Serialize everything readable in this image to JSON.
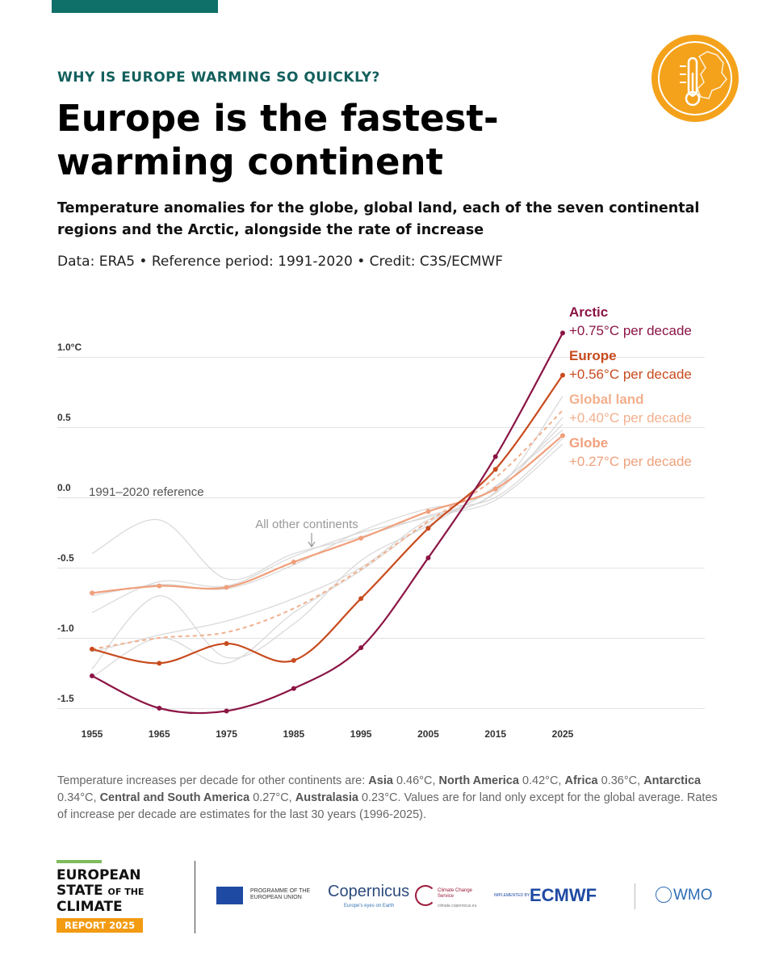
{
  "header": {
    "kicker": "WHY IS EUROPE WARMING SO QUICKLY?",
    "title": "Europe is the fastest-warming continent",
    "subtitle": "Temperature anomalies for the globe, global land, each of the seven continental regions and the Arctic, alongside the rate of increase",
    "credit": "Data: ERA5 • Reference period: 1991-2020 • Credit: C3S/ECMWF"
  },
  "colors": {
    "accent_teal": "#13605d",
    "arctic": "#8b1545",
    "europe": "#c84b1e",
    "global_land": "#f2b08e",
    "globe": "#f0a07c",
    "others": "#d4d4d4",
    "badge_orange": "#f4a21b"
  },
  "chart_data": {
    "type": "line",
    "title": "",
    "xlabel": "",
    "ylabel": "",
    "x": [
      1955,
      1965,
      1975,
      1985,
      1995,
      2005,
      2015,
      2025
    ],
    "xticks": [
      "1955",
      "1965",
      "1975",
      "1985",
      "1995",
      "2005",
      "2015",
      "2025"
    ],
    "ylim": [
      -1.55,
      1.15
    ],
    "yticks": [
      {
        "value": 1.0,
        "label": "1.0°C"
      },
      {
        "value": 0.5,
        "label": "0.5"
      },
      {
        "value": 0.0,
        "label": "0.0"
      },
      {
        "value": -0.5,
        "label": "-0.5"
      },
      {
        "value": -1.0,
        "label": "-1.0"
      },
      {
        "value": -1.5,
        "label": "-1.5"
      }
    ],
    "grid": true,
    "reference_label": "1991–2020 reference",
    "others_label": "All other continents",
    "series": [
      {
        "name": "Arctic",
        "rate": "+0.75°C per decade",
        "values": [
          -1.27,
          -1.5,
          -1.52,
          -1.36,
          -1.07,
          -0.43,
          0.29,
          1.17
        ],
        "style": "solid",
        "color": "#8b1545"
      },
      {
        "name": "Europe",
        "rate": "+0.56°C per decade",
        "values": [
          -1.08,
          -1.18,
          -1.04,
          -1.16,
          -0.72,
          -0.22,
          0.2,
          0.87
        ],
        "style": "solid",
        "color": "#c84b1e"
      },
      {
        "name": "Global land",
        "rate": "+0.40°C per decade",
        "values": [
          -1.08,
          -1.0,
          -0.96,
          -0.79,
          -0.51,
          -0.17,
          0.14,
          0.62
        ],
        "style": "dashed",
        "color": "#f2b08e"
      },
      {
        "name": "Globe",
        "rate": "+0.27°C per decade",
        "values": [
          -0.68,
          -0.63,
          -0.64,
          -0.46,
          -0.29,
          -0.1,
          0.06,
          0.44
        ],
        "style": "solid",
        "color": "#f0a07c"
      }
    ],
    "others": [
      [
        -0.4,
        -0.16,
        -0.58,
        -0.4,
        -0.28,
        -0.13,
        0.04,
        0.72
      ],
      [
        -0.82,
        -0.6,
        -0.63,
        -0.42,
        -0.25,
        -0.14,
        0.03,
        0.57
      ],
      [
        -1.28,
        -1.0,
        -1.18,
        -0.82,
        -0.52,
        -0.18,
        0.07,
        0.52
      ],
      [
        -1.22,
        -0.7,
        -1.14,
        -0.9,
        -0.45,
        -0.2,
        0.08,
        0.48
      ],
      [
        -0.7,
        -0.62,
        -0.65,
        -0.48,
        -0.24,
        -0.08,
        0.0,
        0.42
      ],
      [
        -1.1,
        -0.98,
        -0.88,
        -0.72,
        -0.5,
        -0.16,
        -0.02,
        0.38
      ]
    ]
  },
  "note": {
    "prefix": "Temperature increases per decade for other continents are:",
    "items": [
      {
        "name": "Asia",
        "value": "0.46°C,"
      },
      {
        "name": "North America",
        "value": "0.42°C,"
      },
      {
        "name": "Africa",
        "value": "0.36°C,"
      },
      {
        "name": "Antarctica",
        "value": "0.34°C,"
      },
      {
        "name": "Central and South America",
        "value": "0.27°C,"
      },
      {
        "name": "Australasia",
        "value": "0.23°C."
      }
    ],
    "suffix": "Values are for land only except for the global average. Rates of increase per decade are estimates for the last 30 years (1996-2025)."
  },
  "footer": {
    "esotc_line1": "EUROPEAN",
    "esotc_line2a": "STATE",
    "esotc_line2b": "OF THE",
    "esotc_line3": "CLIMATE",
    "report": "REPORT 2025",
    "eu_text": "PROGRAMME OF THE EUROPEAN UNION",
    "copernicus": "opernicus",
    "copernicus_sub": "Europe's eyes on Earth",
    "c3s": "Climate Change Service",
    "c3s_url": "climate.copernicus.eu",
    "implemented": "IMPLEMENTED BY",
    "ecmwf": "ECMWF",
    "wmo": "WMO"
  }
}
